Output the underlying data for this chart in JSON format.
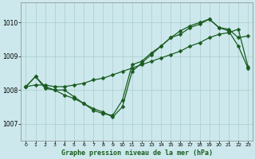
{
  "title": "Graphe pression niveau de la mer (hPa)",
  "background_color": "#cce8ec",
  "grid_color": "#aacccc",
  "line_color": "#1a5c20",
  "xlim": [
    -0.5,
    23.5
  ],
  "ylim": [
    1006.5,
    1010.6
  ],
  "yticks": [
    1007,
    1008,
    1009,
    1010
  ],
  "xticks": [
    0,
    1,
    2,
    3,
    4,
    5,
    6,
    7,
    8,
    9,
    10,
    11,
    12,
    13,
    14,
    15,
    16,
    17,
    18,
    19,
    20,
    21,
    22,
    23
  ],
  "line1_x": [
    0,
    1,
    2,
    3,
    4,
    5,
    6,
    7,
    8,
    9,
    10,
    11,
    12,
    13,
    14,
    15,
    16,
    17,
    18,
    19,
    20,
    21,
    22,
    23
  ],
  "line1_y": [
    1008.1,
    1008.4,
    1008.1,
    1008.0,
    1007.85,
    1007.75,
    1007.6,
    1007.4,
    1007.3,
    1007.25,
    1007.7,
    1008.75,
    1008.85,
    1009.1,
    1009.3,
    1009.55,
    1009.65,
    1009.85,
    1009.95,
    1010.1,
    1009.85,
    1009.8,
    1009.55,
    1009.6
  ],
  "line2_x": [
    0,
    1,
    2,
    3,
    4,
    5,
    6,
    7,
    8,
    9,
    10,
    11,
    12,
    13,
    14,
    15,
    16,
    17,
    18,
    19,
    20,
    21,
    22,
    23
  ],
  "line2_y": [
    1008.1,
    1008.15,
    1008.15,
    1008.1,
    1008.1,
    1008.15,
    1008.2,
    1008.3,
    1008.35,
    1008.45,
    1008.55,
    1008.65,
    1008.75,
    1008.85,
    1008.95,
    1009.05,
    1009.15,
    1009.3,
    1009.4,
    1009.55,
    1009.65,
    1009.7,
    1009.8,
    1008.7
  ],
  "line3_x": [
    0,
    1,
    2,
    3,
    4,
    5,
    6,
    7,
    8,
    9,
    10,
    11,
    12,
    13,
    14,
    15,
    16,
    17,
    18,
    19,
    20,
    21,
    22,
    23
  ],
  "line3_y": [
    1008.1,
    1008.4,
    1008.05,
    1008.0,
    1008.0,
    1007.8,
    1007.6,
    1007.45,
    1007.35,
    1007.2,
    1007.5,
    1008.55,
    1008.8,
    1009.05,
    1009.3,
    1009.55,
    1009.75,
    1009.9,
    1010.0,
    1010.1,
    1009.85,
    1009.75,
    1009.3,
    1008.65
  ],
  "markersize": 2.5,
  "linewidth": 0.9
}
